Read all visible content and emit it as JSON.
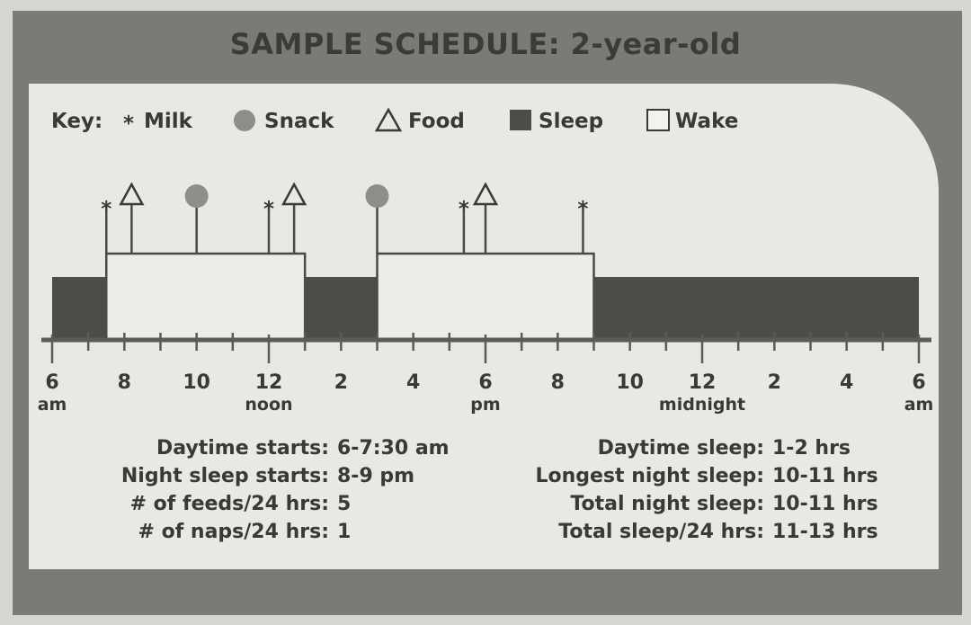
{
  "title": "SAMPLE SCHEDULE: 2-year-old",
  "key": {
    "label": "Key:",
    "items": [
      {
        "symbol": "star",
        "label": "Milk"
      },
      {
        "symbol": "circle",
        "label": "Snack"
      },
      {
        "symbol": "triangle",
        "label": "Food"
      },
      {
        "symbol": "square-filled",
        "label": "Sleep"
      },
      {
        "symbol": "square-open",
        "label": "Wake"
      }
    ]
  },
  "colors": {
    "sleep": "#4d4c49",
    "wake": "#edece7",
    "circle": "#8e8d8a",
    "axis": "#5b5a57",
    "frame": "#7b7a76"
  },
  "chart_data": {
    "type": "timeline",
    "x_range": [
      6,
      30
    ],
    "x_unit": "hour of day (6 = 6 am, 30 = 6 am next day)",
    "ticks": [
      {
        "label": "6",
        "sub": "am"
      },
      {
        "label": "8",
        "sub": ""
      },
      {
        "label": "10",
        "sub": ""
      },
      {
        "label": "12",
        "sub": "noon"
      },
      {
        "label": "2",
        "sub": ""
      },
      {
        "label": "4",
        "sub": ""
      },
      {
        "label": "6",
        "sub": "pm"
      },
      {
        "label": "8",
        "sub": ""
      },
      {
        "label": "10",
        "sub": ""
      },
      {
        "label": "12",
        "sub": "midnight"
      },
      {
        "label": "2",
        "sub": ""
      },
      {
        "label": "4",
        "sub": ""
      },
      {
        "label": "6",
        "sub": "am"
      }
    ],
    "periods": [
      {
        "state": "sleep",
        "start": 6,
        "end": 7.5
      },
      {
        "state": "wake",
        "start": 7.5,
        "end": 13
      },
      {
        "state": "sleep",
        "start": 13,
        "end": 15
      },
      {
        "state": "wake",
        "start": 15,
        "end": 21
      },
      {
        "state": "sleep",
        "start": 21,
        "end": 30
      }
    ],
    "events": [
      {
        "time": 7.5,
        "type": "milk"
      },
      {
        "time": 8.2,
        "type": "food"
      },
      {
        "time": 10,
        "type": "snack"
      },
      {
        "time": 12,
        "type": "milk"
      },
      {
        "time": 12.7,
        "type": "food"
      },
      {
        "time": 15,
        "type": "snack"
      },
      {
        "time": 17.4,
        "type": "milk"
      },
      {
        "time": 18,
        "type": "food"
      },
      {
        "time": 20.7,
        "type": "milk"
      }
    ]
  },
  "stats_left": [
    {
      "label": "Daytime starts:",
      "value": "6-7:30 am"
    },
    {
      "label": "Night sleep starts:",
      "value": "8-9 pm"
    },
    {
      "label": "# of feeds/24 hrs:",
      "value": "5"
    },
    {
      "label": "# of naps/24 hrs:",
      "value": "1"
    }
  ],
  "stats_right": [
    {
      "label": "Daytime sleep:",
      "value": "1-2 hrs"
    },
    {
      "label": "Longest night sleep:",
      "value": "10-11 hrs"
    },
    {
      "label": "Total night sleep:",
      "value": "10-11 hrs"
    },
    {
      "label": "Total sleep/24 hrs:",
      "value": "11-13 hrs"
    }
  ]
}
